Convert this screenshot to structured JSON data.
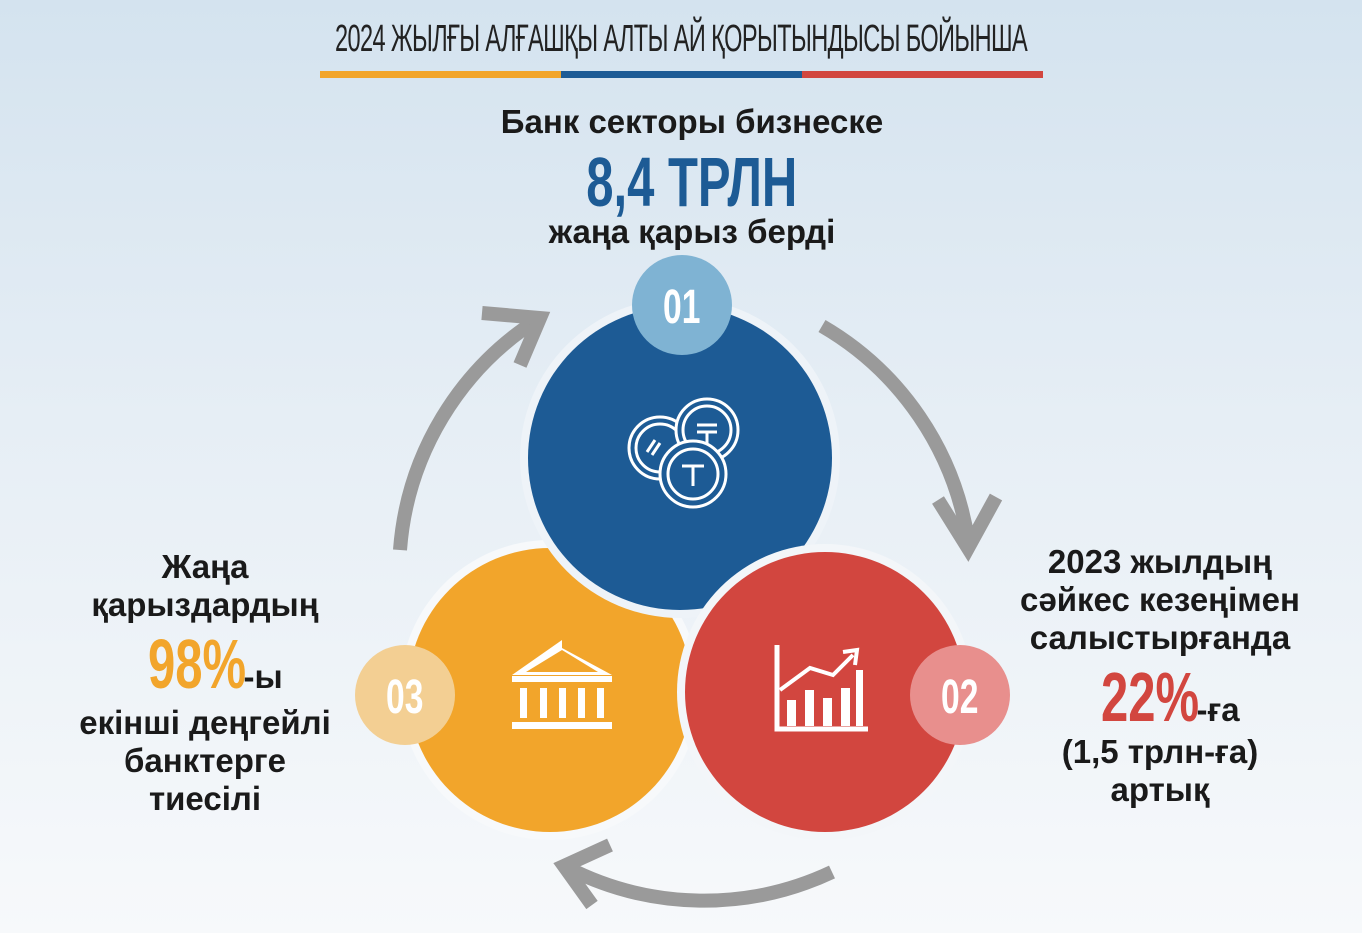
{
  "header": {
    "title": "2024 ЖЫЛҒЫ АЛҒАШҚЫ АЛТЫ АЙ ҚОРЫТЫНДЫСЫ БОЙЫНША"
  },
  "colors": {
    "orange": "#f2a52b",
    "blue": "#1d5b95",
    "red": "#d2463f",
    "badge_blue": "#7fb3d3",
    "badge_red": "#e88f8d",
    "badge_orange": "#f3cf93",
    "arrow": "#9a9a9a"
  },
  "block1": {
    "line1": "Банк секторы бизнеске",
    "value": "8,4 ТРЛН",
    "line2": "жаңа қарыз берді",
    "badge": "01",
    "icon": "tenge-coins-icon"
  },
  "block2": {
    "lines": [
      "2023 жылдың",
      "сәйкес кезеңімен",
      "салыстырғанда"
    ],
    "value": "22%",
    "suffix": "-ға",
    "line4": "(1,5 трлн-ға)",
    "line5": "артық",
    "badge": "02",
    "icon": "growth-chart-icon"
  },
  "block3": {
    "lines": [
      "Жаңа",
      "қарыздардың"
    ],
    "value": "98%",
    "suffix": "-ы",
    "line4": "екінші деңгейлі",
    "line5": "банктерге",
    "line6": "тиесілі",
    "badge": "03",
    "icon": "bank-building-icon"
  }
}
